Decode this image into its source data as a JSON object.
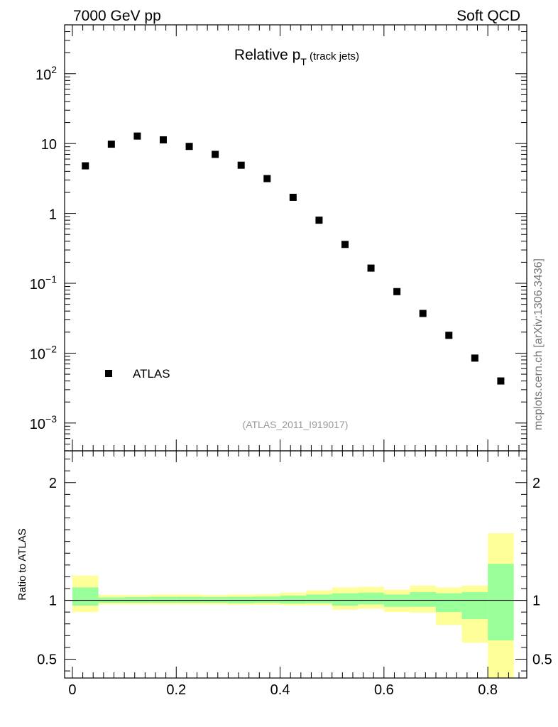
{
  "header": {
    "left": "7000 GeV pp",
    "right": "Soft QCD"
  },
  "watermark": "mcplots.cern.ch [arXiv:1306.3436]",
  "chart_data": [
    {
      "type": "scatter",
      "title": "Relative p",
      "title_subscript": "T",
      "title_suffix": " (track jets)",
      "analysis_label": "(ATLAS_2011_I919017)",
      "legend": [
        "ATLAS"
      ],
      "legend_position": "bottom-left",
      "yscale": "log",
      "ylim": [
        0.0004,
        500
      ],
      "xlim": [
        -0.015,
        0.875
      ],
      "y_tick_labels": [
        {
          "base": "10",
          "exp": "2",
          "value": 100
        },
        {
          "base": "10",
          "exp": "",
          "value": 10
        },
        {
          "base": "1",
          "exp": "",
          "value": 1
        },
        {
          "base": "10",
          "exp": "−1",
          "value": 0.1
        },
        {
          "base": "10",
          "exp": "−2",
          "value": 0.01
        },
        {
          "base": "10",
          "exp": "−3",
          "value": 0.001
        }
      ],
      "series": [
        {
          "name": "ATLAS",
          "x": [
            0.025,
            0.075,
            0.125,
            0.175,
            0.225,
            0.275,
            0.325,
            0.375,
            0.425,
            0.475,
            0.525,
            0.575,
            0.625,
            0.675,
            0.725,
            0.775,
            0.825
          ],
          "y": [
            4.8,
            9.8,
            12.8,
            11.3,
            9.1,
            7.0,
            4.9,
            3.15,
            1.7,
            0.8,
            0.36,
            0.165,
            0.076,
            0.037,
            0.018,
            0.0085,
            0.004
          ]
        }
      ]
    },
    {
      "type": "area",
      "ylabel": "Ratio to ATLAS",
      "ylim": [
        0.34,
        2.27
      ],
      "xlim": [
        -0.015,
        0.875
      ],
      "x_tick_labels": [
        "0",
        "0.2",
        "0.4",
        "0.6",
        "0.8"
      ],
      "x_ticks": [
        0,
        0.2,
        0.4,
        0.6,
        0.8
      ],
      "y_tick_labels": [
        "2",
        "1",
        "0.5"
      ],
      "y_ticks": [
        2,
        1,
        0.5
      ],
      "reference_line": 1,
      "bins": [
        {
          "x0": 0.0,
          "x1": 0.05,
          "yellow": [
            0.9,
            1.21
          ],
          "green": [
            0.955,
            1.11
          ]
        },
        {
          "x0": 0.05,
          "x1": 0.1,
          "yellow": [
            0.965,
            1.045
          ],
          "green": [
            0.98,
            1.025
          ]
        },
        {
          "x0": 0.1,
          "x1": 0.15,
          "yellow": [
            0.965,
            1.045
          ],
          "green": [
            0.98,
            1.027
          ]
        },
        {
          "x0": 0.15,
          "x1": 0.2,
          "yellow": [
            0.965,
            1.05
          ],
          "green": [
            0.98,
            1.03
          ]
        },
        {
          "x0": 0.2,
          "x1": 0.25,
          "yellow": [
            0.965,
            1.05
          ],
          "green": [
            0.98,
            1.03
          ]
        },
        {
          "x0": 0.25,
          "x1": 0.3,
          "yellow": [
            0.965,
            1.045
          ],
          "green": [
            0.98,
            1.028
          ]
        },
        {
          "x0": 0.3,
          "x1": 0.35,
          "yellow": [
            0.96,
            1.05
          ],
          "green": [
            0.975,
            1.03
          ]
        },
        {
          "x0": 0.35,
          "x1": 0.4,
          "yellow": [
            0.962,
            1.053
          ],
          "green": [
            0.978,
            1.032
          ]
        },
        {
          "x0": 0.4,
          "x1": 0.45,
          "yellow": [
            0.958,
            1.065
          ],
          "green": [
            0.972,
            1.04
          ]
        },
        {
          "x0": 0.45,
          "x1": 0.5,
          "yellow": [
            0.958,
            1.085
          ],
          "green": [
            0.975,
            1.05
          ]
        },
        {
          "x0": 0.5,
          "x1": 0.55,
          "yellow": [
            0.92,
            1.11
          ],
          "green": [
            0.955,
            1.06
          ]
        },
        {
          "x0": 0.55,
          "x1": 0.6,
          "yellow": [
            0.93,
            1.115
          ],
          "green": [
            0.965,
            1.065
          ]
        },
        {
          "x0": 0.6,
          "x1": 0.65,
          "yellow": [
            0.9,
            1.09
          ],
          "green": [
            0.945,
            1.05
          ]
        },
        {
          "x0": 0.65,
          "x1": 0.7,
          "yellow": [
            0.895,
            1.125
          ],
          "green": [
            0.945,
            1.07
          ]
        },
        {
          "x0": 0.7,
          "x1": 0.75,
          "yellow": [
            0.79,
            1.11
          ],
          "green": [
            0.9,
            1.06
          ]
        },
        {
          "x0": 0.75,
          "x1": 0.8,
          "yellow": [
            0.64,
            1.125
          ],
          "green": [
            0.84,
            1.07
          ]
        },
        {
          "x0": 0.8,
          "x1": 0.85,
          "yellow": [
            0.34,
            1.57
          ],
          "green": [
            0.66,
            1.31
          ]
        }
      ]
    }
  ]
}
